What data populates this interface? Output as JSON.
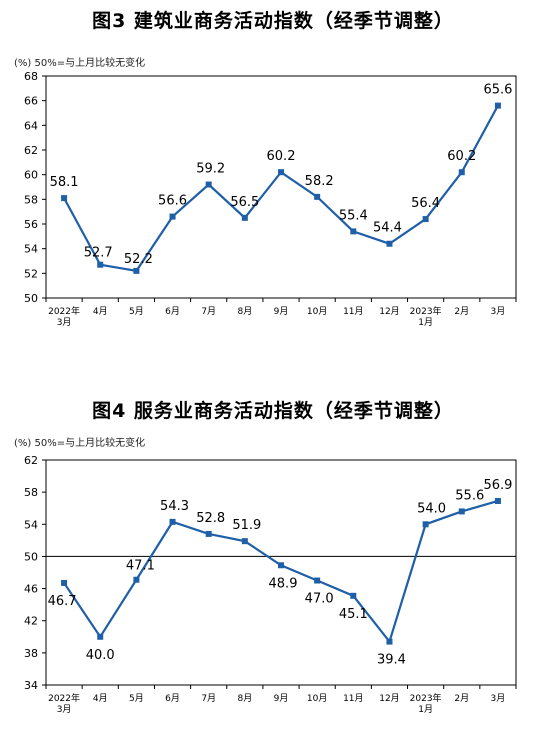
{
  "chart_data": [
    {
      "type": "line",
      "title": "图3  建筑业商务活动指数（经季节调整）",
      "note": "(%)  50%=与上月比较无变化",
      "categories": [
        "2022年\n3月",
        "4月",
        "5月",
        "6月",
        "7月",
        "8月",
        "9月",
        "10月",
        "11月",
        "12月",
        "2023年\n1月",
        "2月",
        "3月"
      ],
      "values": [
        58.1,
        52.7,
        52.2,
        56.6,
        59.2,
        56.5,
        60.2,
        58.2,
        55.4,
        54.4,
        56.4,
        60.2,
        65.6
      ],
      "yticks": [
        "50",
        "52",
        "54",
        "56",
        "58",
        "60",
        "62",
        "64",
        "66",
        "68"
      ],
      "ylim": [
        50,
        68
      ],
      "reference_line": null,
      "color": "#1f5fa8"
    },
    {
      "type": "line",
      "title": "图4  服务业商务活动指数（经季节调整）",
      "note": "(%)  50%=与上月比较无变化",
      "categories": [
        "2022年\n3月",
        "4月",
        "5月",
        "6月",
        "7月",
        "8月",
        "9月",
        "10月",
        "11月",
        "12月",
        "2023年\n1月",
        "2月",
        "3月"
      ],
      "values": [
        46.7,
        40.0,
        47.1,
        54.3,
        52.8,
        51.9,
        48.9,
        47.0,
        45.1,
        39.4,
        54.0,
        55.6,
        56.9
      ],
      "yticks": [
        "34",
        "38",
        "42",
        "46",
        "50",
        "54",
        "58",
        "62"
      ],
      "ylim": [
        34,
        62
      ],
      "reference_line": 50,
      "color": "#1f5fa8"
    }
  ]
}
